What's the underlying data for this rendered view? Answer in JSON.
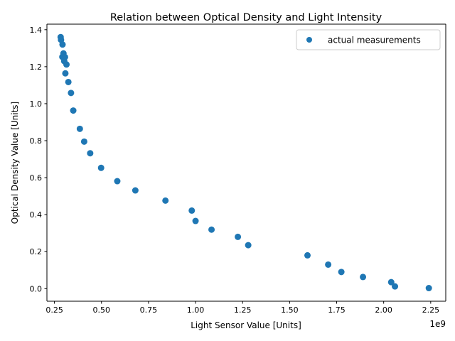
{
  "chart_data": {
    "type": "scatter",
    "title": "Relation between Optical Density and Light Intensity",
    "xlabel": "Light Sensor Value [Units]",
    "ylabel": "Optical Density Value [Units]",
    "x_offset_label": "1e9",
    "xlim": [
      0.21,
      2.33
    ],
    "ylim": [
      -0.068,
      1.43
    ],
    "x_ticks": [
      {
        "value": 0.25,
        "label": "0.25"
      },
      {
        "value": 0.5,
        "label": "0.50"
      },
      {
        "value": 0.75,
        "label": "0.75"
      },
      {
        "value": 1.0,
        "label": "1.00"
      },
      {
        "value": 1.25,
        "label": "1.25"
      },
      {
        "value": 1.5,
        "label": "1.50"
      },
      {
        "value": 1.75,
        "label": "1.75"
      },
      {
        "value": 2.0,
        "label": "2.00"
      },
      {
        "value": 2.25,
        "label": "2.25"
      }
    ],
    "y_ticks": [
      {
        "value": 0.0,
        "label": "0.0"
      },
      {
        "value": 0.2,
        "label": "0.2"
      },
      {
        "value": 0.4,
        "label": "0.4"
      },
      {
        "value": 0.6,
        "label": "0.6"
      },
      {
        "value": 0.8,
        "label": "0.8"
      },
      {
        "value": 1.0,
        "label": "1.0"
      },
      {
        "value": 1.2,
        "label": "1.2"
      },
      {
        "value": 1.4,
        "label": "1.4"
      }
    ],
    "legend": {
      "position": "top-right",
      "entries": [
        "actual measurements"
      ]
    },
    "grid": false,
    "series": [
      {
        "name": "actual measurements",
        "color": "#1f77b4",
        "points": [
          [
            0.283,
            1.36
          ],
          [
            0.285,
            1.345
          ],
          [
            0.293,
            1.32
          ],
          [
            0.298,
            1.272
          ],
          [
            0.292,
            1.253
          ],
          [
            0.306,
            1.252
          ],
          [
            0.302,
            1.23
          ],
          [
            0.314,
            1.212
          ],
          [
            0.308,
            1.164
          ],
          [
            0.324,
            1.117
          ],
          [
            0.338,
            1.058
          ],
          [
            0.35,
            0.963
          ],
          [
            0.385,
            0.864
          ],
          [
            0.408,
            0.795
          ],
          [
            0.44,
            0.732
          ],
          [
            0.498,
            0.653
          ],
          [
            0.584,
            0.581
          ],
          [
            0.68,
            0.531
          ],
          [
            0.84,
            0.476
          ],
          [
            0.98,
            0.422
          ],
          [
            1.0,
            0.366
          ],
          [
            1.085,
            0.319
          ],
          [
            1.225,
            0.28
          ],
          [
            1.28,
            0.235
          ],
          [
            1.595,
            0.18
          ],
          [
            1.705,
            0.13
          ],
          [
            1.775,
            0.09
          ],
          [
            1.89,
            0.063
          ],
          [
            2.04,
            0.035
          ],
          [
            2.06,
            0.012
          ],
          [
            2.24,
            0.003
          ]
        ]
      }
    ]
  }
}
